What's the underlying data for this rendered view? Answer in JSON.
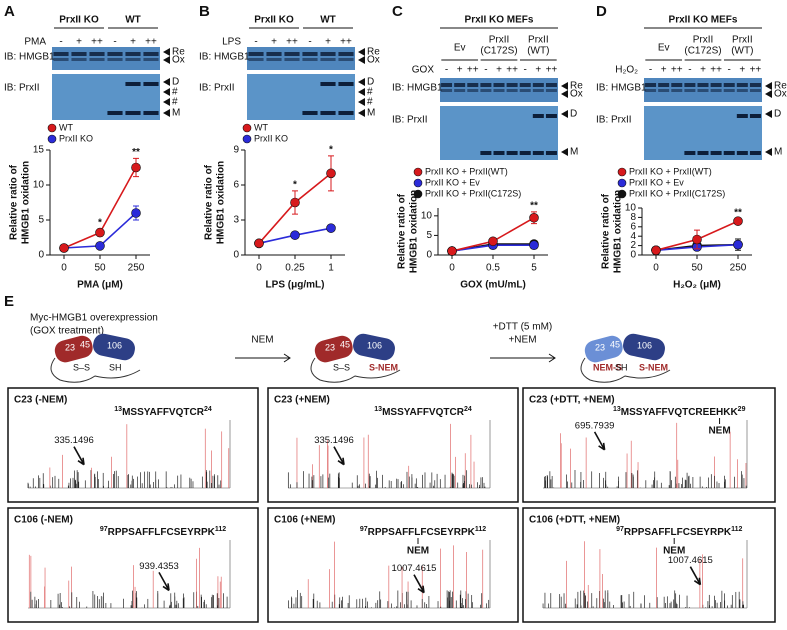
{
  "panel_labels": [
    "A",
    "B",
    "C",
    "D",
    "E"
  ],
  "blots": [
    {
      "header": [
        "PrxII KO",
        "WT"
      ],
      "treatment": "PMA",
      "lanes": [
        "-",
        "+",
        "++",
        "-",
        "+",
        "++"
      ],
      "ib": [
        "IB: HMGB1",
        "IB: PrxII"
      ],
      "markers": [
        "Re",
        "Ox",
        "D",
        "#",
        "#",
        "M"
      ]
    },
    {
      "header": [
        "PrxII KO",
        "WT"
      ],
      "treatment": "LPS",
      "lanes": [
        "-",
        "+",
        "++",
        "-",
        "+",
        "++"
      ],
      "ib": [
        "IB: HMGB1",
        "IB: PrxII"
      ],
      "markers": [
        "Re",
        "Ox",
        "D",
        "#",
        "#",
        "M"
      ]
    },
    {
      "header": [
        "PrxII KO MEFs"
      ],
      "groups": [
        [
          "Ev"
        ],
        [
          "PrxII",
          "(C172S)"
        ],
        [
          "PrxII",
          "(WT)"
        ]
      ],
      "treatment": "GOX",
      "lanes": [
        "-",
        "+",
        "++",
        "-",
        "+",
        "++",
        "-",
        "+",
        "++"
      ],
      "ib": [
        "IB: HMGB1",
        "IB: PrxII"
      ],
      "markers": [
        "Re",
        "Ox",
        "D",
        "M"
      ]
    },
    {
      "header": [
        "PrxII KO MEFs"
      ],
      "groups": [
        [
          "Ev"
        ],
        [
          "PrxII",
          "(C172S)"
        ],
        [
          "PrxII",
          "(WT)"
        ]
      ],
      "treatment": "H₂O₂",
      "lanes": [
        "-",
        "+",
        "++",
        "-",
        "+",
        "++",
        "-",
        "+",
        "++"
      ],
      "ib": [
        "IB: HMGB1",
        "IB: PrxII"
      ],
      "markers": [
        "Re",
        "Ox",
        "D",
        "M"
      ]
    }
  ],
  "chart_data": [
    {
      "type": "line",
      "ylabel": [
        "Relative ratio of",
        "HMGB1 oxidation"
      ],
      "xlabel": "PMA (μM)",
      "categories": [
        "0",
        "50",
        "250"
      ],
      "ylim": [
        0,
        15
      ],
      "yticks": [
        0,
        5,
        10,
        15
      ],
      "series": [
        {
          "name": "WT",
          "color": "#d7191c",
          "values": [
            1,
            3.2,
            12.5
          ],
          "errors": [
            0.2,
            0.5,
            1.3
          ]
        },
        {
          "name": "PrxII KO",
          "color": "#2b2bd9",
          "values": [
            1,
            1.3,
            6
          ],
          "errors": [
            0.1,
            0.3,
            1.0
          ]
        }
      ],
      "annotations": [
        null,
        "*",
        "**"
      ]
    },
    {
      "type": "line",
      "ylabel": [
        "Relative ratio of",
        "HMGB1 oxidation"
      ],
      "xlabel": "LPS (μg/mL)",
      "categories": [
        "0",
        "0.25",
        "1"
      ],
      "ylim": [
        0,
        9
      ],
      "yticks": [
        0,
        3,
        6,
        9
      ],
      "series": [
        {
          "name": "WT",
          "color": "#d7191c",
          "values": [
            1,
            4.5,
            7
          ],
          "errors": [
            0.1,
            1.0,
            1.5
          ]
        },
        {
          "name": "PrxII KO",
          "color": "#2b2bd9",
          "values": [
            1,
            1.7,
            2.3
          ],
          "errors": [
            0.1,
            0.2,
            0.2
          ]
        }
      ],
      "annotations": [
        null,
        "*",
        "*"
      ]
    },
    {
      "type": "line",
      "ylabel": [
        "Relative ratio of",
        "HMGB1 oxidation"
      ],
      "xlabel": "GOX (mU/mL)",
      "categories": [
        "0",
        "0.5",
        "5"
      ],
      "ylim": [
        0,
        12
      ],
      "yticks": [
        0,
        5,
        10
      ],
      "series": [
        {
          "name": "PrxII KO + PrxII(WT)",
          "color": "#d7191c",
          "values": [
            1,
            3.5,
            9.5
          ],
          "errors": [
            0.1,
            0.5,
            1.5
          ]
        },
        {
          "name": "PrxII KO + Ev",
          "color": "#2b2bd9",
          "values": [
            1,
            2.5,
            2.5
          ],
          "errors": [
            0.1,
            0.3,
            0.4
          ]
        },
        {
          "name": "PrxII KO + PrxII(C172S)",
          "color": "#111111",
          "values": [
            1,
            2.8,
            2.8
          ],
          "errors": [
            0.1,
            0.3,
            0.4
          ]
        }
      ],
      "annotations": [
        null,
        null,
        "**"
      ]
    },
    {
      "type": "line",
      "ylabel": [
        "Relative ratio of",
        "HMGB1 oxidation"
      ],
      "xlabel": "H₂O₂ (μM)",
      "categories": [
        "0",
        "50",
        "250"
      ],
      "ylim": [
        0,
        10
      ],
      "yticks": [
        0,
        2,
        4,
        6,
        8,
        10
      ],
      "series": [
        {
          "name": "PrxII KO + PrxII(WT)",
          "color": "#d7191c",
          "values": [
            1,
            3.3,
            7.2
          ],
          "errors": [
            0.1,
            2.0,
            0.5
          ]
        },
        {
          "name": "PrxII KO + Ev",
          "color": "#2b2bd9",
          "values": [
            1,
            1.7,
            2.2
          ],
          "errors": [
            0.2,
            0.5,
            0.8
          ]
        },
        {
          "name": "PrxII KO + PrxII(C172S)",
          "color": "#111111",
          "values": [
            1,
            2,
            2.2
          ],
          "errors": [
            0.1,
            1.0,
            1.2
          ]
        }
      ],
      "annotations": [
        null,
        null,
        "**"
      ]
    }
  ],
  "scheme": {
    "start": [
      "Myc-HMGB1 overexpression",
      "(GOX treatment)"
    ],
    "steps": [
      [
        "NEM"
      ],
      [
        "+DTT (5 mM)",
        "+NEM"
      ]
    ],
    "molecules": [
      {
        "domains": [
          "23",
          "45",
          "106"
        ],
        "thiols": [
          "S–S",
          "SH"
        ]
      },
      {
        "domains": [
          "23",
          "45",
          "106"
        ],
        "thiols": [
          "S–S",
          "S-NEM"
        ]
      },
      {
        "domains": [
          "23",
          "45",
          "106"
        ],
        "thiols": [
          "NEM-S",
          "SH",
          "S-NEM"
        ]
      }
    ]
  },
  "spectra": [
    {
      "title": "C23 (-NEM)",
      "peptide": {
        "start": "13",
        "sequence": "MSSYAFFVQTCR",
        "end": "24"
      },
      "mass": "335.1496"
    },
    {
      "title": "C23 (+NEM)",
      "peptide": {
        "start": "13",
        "sequence": "MSSYAFFVQTCR",
        "end": "24"
      },
      "mass": "335.1496"
    },
    {
      "title": "C23 (+DTT, +NEM)",
      "peptide": {
        "start": "13",
        "sequence": "MSSYAFFVQTCREEHKK",
        "end": "29"
      },
      "modification": "NEM",
      "mass": "695.7939"
    },
    {
      "title": "C106 (-NEM)",
      "peptide": {
        "start": "97",
        "sequence": "RPPSAFFLFCSEYRPK",
        "end": "112"
      },
      "mass": "939.4353"
    },
    {
      "title": "C106 (+NEM)",
      "peptide": {
        "start": "97",
        "sequence": "RPPSAFFLFCSEYRPK",
        "end": "112"
      },
      "modification": "NEM",
      "mass": "1007.4615"
    },
    {
      "title": "C106 (+DTT, +NEM)",
      "peptide": {
        "start": "97",
        "sequence": "RPPSAFFLFCSEYRPK",
        "end": "112"
      },
      "modification": "NEM",
      "mass": "1007.4615"
    }
  ]
}
